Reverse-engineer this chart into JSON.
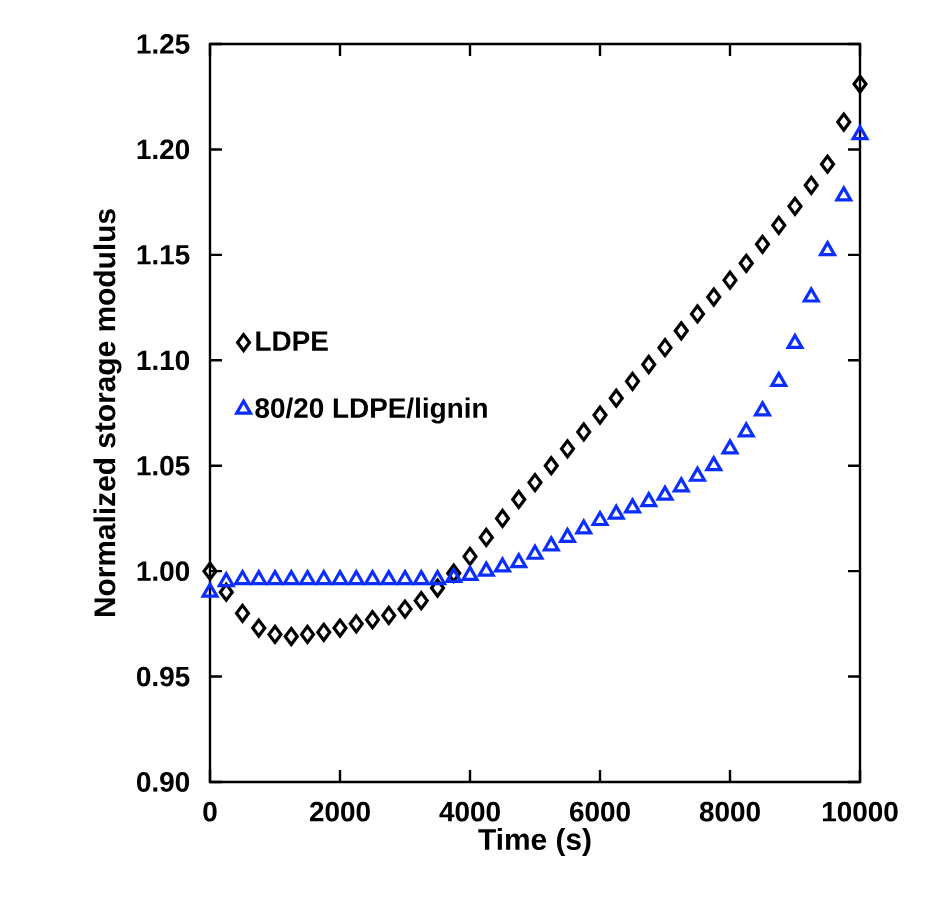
{
  "chart_data": {
    "type": "scatter",
    "xlabel": "Time (s)",
    "ylabel": "Normalized storage modulus",
    "xlim": [
      0,
      10000
    ],
    "ylim": [
      0.9,
      1.25
    ],
    "xticks": [
      0,
      2000,
      4000,
      6000,
      8000,
      10000
    ],
    "yticks": [
      {
        "value": 0.9,
        "label": "0.90"
      },
      {
        "value": 0.95,
        "label": "0.95"
      },
      {
        "value": 1.0,
        "label": "1.00"
      },
      {
        "value": 1.05,
        "label": "1.05"
      },
      {
        "value": 1.1,
        "label": "1.10"
      },
      {
        "value": 1.15,
        "label": "1.15"
      },
      {
        "value": 1.2,
        "label": "1.20"
      },
      {
        "value": 1.25,
        "label": "1.25"
      }
    ],
    "legend": "left",
    "grid": false,
    "x": [
      0,
      250,
      500,
      750,
      1000,
      1250,
      1500,
      1750,
      2000,
      2250,
      2500,
      2750,
      3000,
      3250,
      3500,
      3750,
      4000,
      4250,
      4500,
      4750,
      5000,
      5250,
      5500,
      5750,
      6000,
      6250,
      6500,
      6750,
      7000,
      7250,
      7500,
      7750,
      8000,
      8250,
      8500,
      8750,
      9000,
      9250,
      9500,
      9750,
      10000
    ],
    "series": [
      {
        "name": "LDPE",
        "color": "#000000",
        "marker": "diamond",
        "values": [
          1.0,
          0.99,
          0.98,
          0.973,
          0.97,
          0.969,
          0.97,
          0.971,
          0.973,
          0.975,
          0.977,
          0.979,
          0.982,
          0.986,
          0.992,
          0.999,
          1.007,
          1.016,
          1.025,
          1.034,
          1.042,
          1.05,
          1.058,
          1.066,
          1.074,
          1.082,
          1.09,
          1.098,
          1.106,
          1.114,
          1.122,
          1.13,
          1.138,
          1.146,
          1.155,
          1.164,
          1.173,
          1.183,
          1.193,
          1.213,
          1.231
        ]
      },
      {
        "name": "80/20 LDPE/lignin",
        "color": "#0a2eff",
        "marker": "triangle",
        "values": [
          0.99,
          0.995,
          0.996,
          0.996,
          0.996,
          0.996,
          0.996,
          0.996,
          0.996,
          0.996,
          0.996,
          0.996,
          0.996,
          0.996,
          0.996,
          0.997,
          0.998,
          1.0,
          1.002,
          1.004,
          1.008,
          1.012,
          1.016,
          1.02,
          1.024,
          1.027,
          1.03,
          1.033,
          1.036,
          1.04,
          1.045,
          1.05,
          1.058,
          1.066,
          1.076,
          1.09,
          1.108,
          1.13,
          1.152,
          1.178,
          1.207
        ]
      }
    ]
  }
}
